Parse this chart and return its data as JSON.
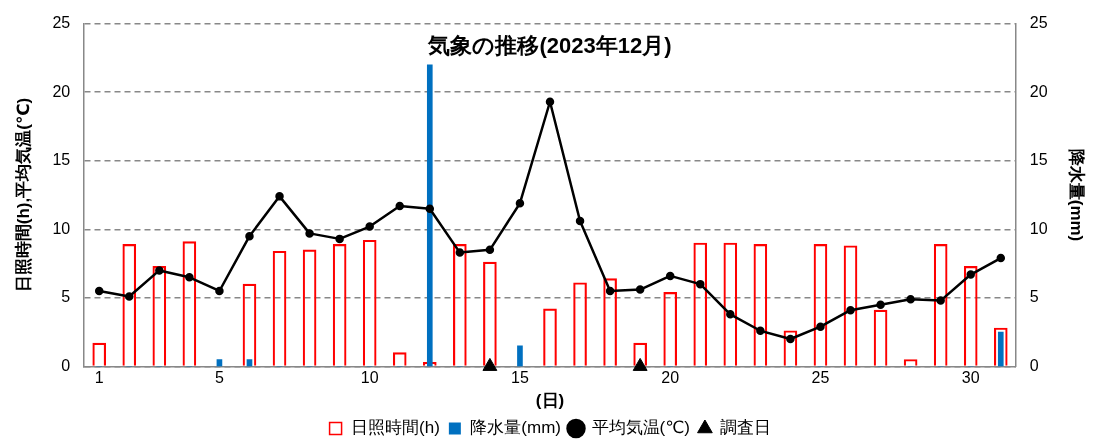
{
  "chart_data": {
    "type": "bar",
    "title": "気象の推移(2023年12月)",
    "xlabel": "(日)",
    "ylabel": "日照時間(h),平均気温(℃)",
    "y2label": "降水量(mm)",
    "x": [
      1,
      2,
      3,
      4,
      5,
      6,
      7,
      8,
      9,
      10,
      11,
      12,
      13,
      14,
      15,
      16,
      17,
      18,
      19,
      20,
      21,
      22,
      23,
      24,
      25,
      26,
      27,
      28,
      29,
      30,
      31
    ],
    "xlim": [
      0.5,
      31.5
    ],
    "xticks": [
      1,
      5,
      10,
      15,
      20,
      25,
      30
    ],
    "ylim": [
      0,
      25
    ],
    "yticks": [
      0,
      5,
      10,
      15,
      20,
      25
    ],
    "y2lim": [
      0,
      25
    ],
    "y2ticks": [
      0,
      5,
      10,
      15,
      20,
      25
    ],
    "grid": "y",
    "legend": "bottom",
    "series": [
      {
        "name": "日照時間(h)",
        "color": "#ff0000",
        "values": [
          1.7,
          8.9,
          7.3,
          9.1,
          0,
          6.0,
          8.4,
          8.5,
          8.9,
          9.2,
          1.0,
          0.3,
          8.9,
          7.6,
          0,
          4.2,
          6.1,
          6.4,
          1.7,
          5.4,
          9.0,
          9.0,
          8.9,
          2.6,
          8.9,
          8.8,
          4.1,
          0.5,
          8.9,
          7.3,
          2.8
        ]
      },
      {
        "name": "降水量(mm)",
        "color": "#0070c0",
        "axis": "y2",
        "values": [
          0,
          0,
          0,
          0,
          0.5,
          0.5,
          0,
          0,
          0,
          0,
          0,
          22.0,
          0,
          0,
          1.5,
          0,
          0,
          0,
          0,
          0,
          0,
          0,
          0,
          0,
          0,
          0,
          0,
          0,
          0,
          0,
          2.5
        ]
      },
      {
        "type": "line",
        "name": "平均気温(℃)",
        "color": "#000000",
        "marker": "circle",
        "line_style": "solid",
        "values": [
          5.5,
          5.1,
          7.0,
          6.5,
          5.5,
          9.5,
          12.4,
          9.7,
          9.3,
          10.2,
          11.7,
          11.5,
          8.3,
          8.5,
          11.9,
          19.3,
          10.6,
          5.5,
          5.6,
          6.6,
          6.0,
          3.8,
          2.6,
          2.0,
          2.9,
          4.1,
          4.5,
          4.9,
          4.8,
          6.7,
          7.9
        ]
      },
      {
        "type": "scatter",
        "name": "調査日",
        "color": "#000000",
        "marker": "triangle",
        "x": [
          14,
          19
        ],
        "values": [
          0,
          0
        ]
      }
    ]
  }
}
